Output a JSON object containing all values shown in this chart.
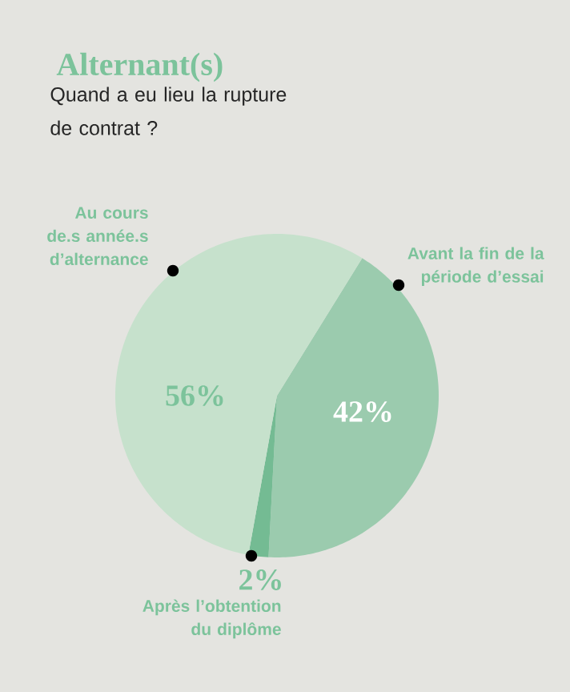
{
  "chart_data": {
    "type": "pie",
    "title": "Alternant(s)",
    "subtitle": "Quand a eu lieu la rupture de contrat ?",
    "categories": [
      "Avant la fin de la période d’essai",
      "Après l’obtention du diplôme",
      "Au cours de.s année.s d’alternance"
    ],
    "values": [
      42,
      2,
      56
    ],
    "colors": [
      "#9bcbae",
      "#74bb93",
      "#c6e1cc"
    ],
    "value_labels": [
      "42%",
      "2%",
      "56%"
    ]
  }
}
